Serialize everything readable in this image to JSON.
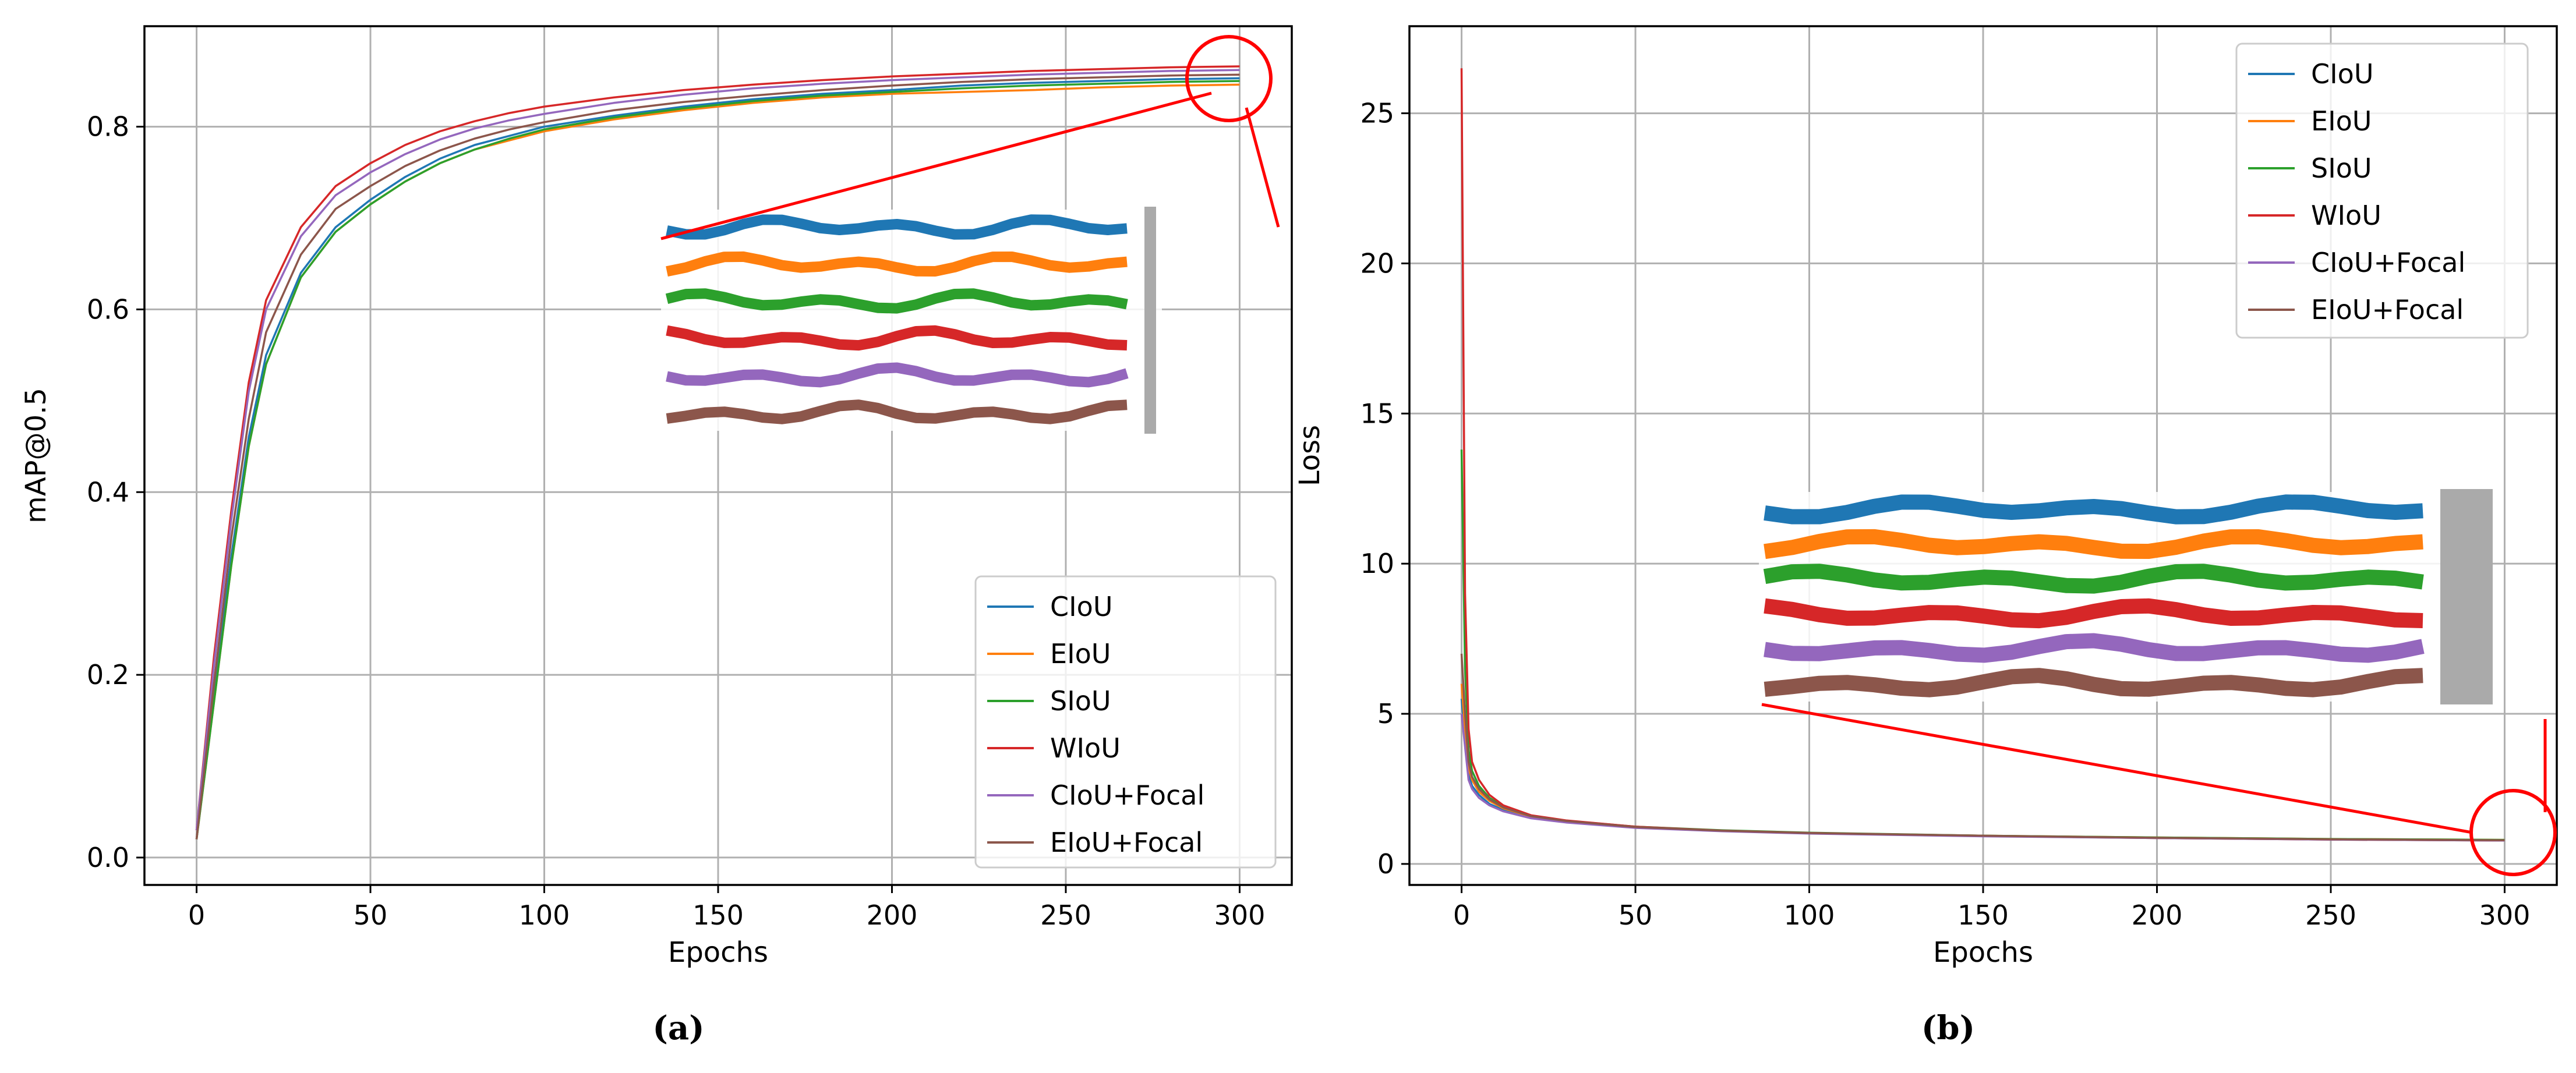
{
  "chart_data": [
    {
      "panel_label": "(a)",
      "type": "line",
      "xlabel": "Epochs",
      "ylabel": "mAP@0.5",
      "xlim": [
        -15,
        315
      ],
      "ylim": [
        -0.03,
        0.91
      ],
      "xticks": [
        0,
        50,
        100,
        150,
        200,
        250,
        300
      ],
      "yticks": [
        0.0,
        0.2,
        0.4,
        0.6,
        0.8
      ],
      "ytick_labels": [
        "0.0",
        "0.2",
        "0.4",
        "0.6",
        "0.8"
      ],
      "grid": true,
      "legend_position": "lower-right",
      "x": [
        0,
        5,
        10,
        15,
        20,
        30,
        40,
        50,
        60,
        70,
        80,
        90,
        100,
        120,
        140,
        160,
        180,
        200,
        220,
        240,
        260,
        280,
        300
      ],
      "series": [
        {
          "name": "CIoU",
          "color": "#1f77b4",
          "values": [
            0.02,
            0.18,
            0.33,
            0.46,
            0.55,
            0.64,
            0.69,
            0.72,
            0.745,
            0.765,
            0.78,
            0.79,
            0.8,
            0.812,
            0.822,
            0.83,
            0.836,
            0.84,
            0.845,
            0.848,
            0.85,
            0.852,
            0.853
          ]
        },
        {
          "name": "EIoU",
          "color": "#ff7f0e",
          "values": [
            0.02,
            0.17,
            0.32,
            0.45,
            0.54,
            0.635,
            0.685,
            0.715,
            0.74,
            0.76,
            0.775,
            0.785,
            0.795,
            0.808,
            0.818,
            0.826,
            0.832,
            0.836,
            0.838,
            0.84,
            0.843,
            0.845,
            0.846
          ]
        },
        {
          "name": "SIoU",
          "color": "#2ca02c",
          "values": [
            0.02,
            0.17,
            0.32,
            0.45,
            0.54,
            0.635,
            0.685,
            0.715,
            0.74,
            0.76,
            0.775,
            0.787,
            0.797,
            0.81,
            0.82,
            0.828,
            0.834,
            0.838,
            0.842,
            0.845,
            0.847,
            0.849,
            0.85
          ]
        },
        {
          "name": "WIoU",
          "color": "#d62728",
          "values": [
            0.03,
            0.22,
            0.38,
            0.52,
            0.61,
            0.69,
            0.735,
            0.76,
            0.78,
            0.795,
            0.806,
            0.815,
            0.822,
            0.832,
            0.84,
            0.846,
            0.851,
            0.855,
            0.858,
            0.861,
            0.863,
            0.865,
            0.866
          ]
        },
        {
          "name": "CIoU+Focal",
          "color": "#9467bd",
          "values": [
            0.03,
            0.21,
            0.37,
            0.51,
            0.6,
            0.68,
            0.725,
            0.75,
            0.77,
            0.786,
            0.798,
            0.807,
            0.814,
            0.826,
            0.835,
            0.842,
            0.847,
            0.851,
            0.854,
            0.857,
            0.859,
            0.861,
            0.862
          ]
        },
        {
          "name": "EIoU+Focal",
          "color": "#8c564b",
          "values": [
            0.02,
            0.19,
            0.35,
            0.48,
            0.575,
            0.66,
            0.71,
            0.735,
            0.757,
            0.774,
            0.787,
            0.797,
            0.805,
            0.818,
            0.827,
            0.834,
            0.84,
            0.845,
            0.849,
            0.852,
            0.854,
            0.856,
            0.857
          ]
        }
      ]
    },
    {
      "panel_label": "(b)",
      "type": "line",
      "xlabel": "Epochs",
      "ylabel": "Loss",
      "xlim": [
        -15,
        315
      ],
      "ylim": [
        -0.7,
        27.9
      ],
      "xticks": [
        0,
        50,
        100,
        150,
        200,
        250,
        300
      ],
      "yticks": [
        0,
        5,
        10,
        15,
        20,
        25
      ],
      "ytick_labels": [
        "0",
        "5",
        "10",
        "15",
        "20",
        "25"
      ],
      "grid": true,
      "legend_position": "top-right",
      "x": [
        0,
        1,
        2,
        3,
        5,
        8,
        12,
        20,
        30,
        50,
        75,
        100,
        150,
        200,
        250,
        300
      ],
      "series": [
        {
          "name": "CIoU",
          "color": "#1f77b4",
          "values": [
            5.5,
            4.2,
            3.0,
            2.6,
            2.3,
            2.0,
            1.8,
            1.55,
            1.4,
            1.22,
            1.1,
            1.02,
            0.93,
            0.87,
            0.82,
            0.79
          ]
        },
        {
          "name": "EIoU",
          "color": "#ff7f0e",
          "values": [
            6.0,
            4.5,
            3.2,
            2.8,
            2.4,
            2.1,
            1.85,
            1.58,
            1.42,
            1.23,
            1.11,
            1.03,
            0.94,
            0.88,
            0.83,
            0.8
          ]
        },
        {
          "name": "SIoU",
          "color": "#2ca02c",
          "values": [
            13.8,
            6.5,
            3.8,
            3.1,
            2.6,
            2.2,
            1.9,
            1.6,
            1.44,
            1.24,
            1.12,
            1.04,
            0.94,
            0.88,
            0.83,
            0.8
          ]
        },
        {
          "name": "WIoU",
          "color": "#d62728",
          "values": [
            26.5,
            9.0,
            4.5,
            3.4,
            2.8,
            2.3,
            1.95,
            1.62,
            1.45,
            1.24,
            1.11,
            1.03,
            0.93,
            0.86,
            0.81,
            0.78
          ]
        },
        {
          "name": "CIoU+Focal",
          "color": "#9467bd",
          "values": [
            5.0,
            3.9,
            2.8,
            2.5,
            2.2,
            1.95,
            1.75,
            1.52,
            1.38,
            1.2,
            1.09,
            1.01,
            0.92,
            0.86,
            0.81,
            0.78
          ]
        },
        {
          "name": "EIoU+Focal",
          "color": "#8c564b",
          "values": [
            7.0,
            5.0,
            3.4,
            2.9,
            2.5,
            2.15,
            1.88,
            1.59,
            1.43,
            1.23,
            1.11,
            1.03,
            0.94,
            0.87,
            0.82,
            0.79
          ]
        }
      ]
    }
  ],
  "accent_colors": {
    "zoom_marker": "#ff0000",
    "zoom_bar": "#aaaaaa",
    "grid": "#b0b0b0"
  }
}
